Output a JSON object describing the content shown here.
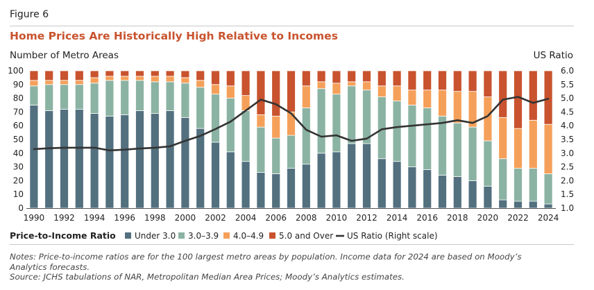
{
  "figure_label": "Figure 6",
  "title": "Home Prices Are Historically High Relative to Incomes",
  "notes": [
    "Notes: Price-to-income ratios are for the 100 largest metro areas by population. Income data for 2024 are based on Moody’s",
    "Analytics forecasts.",
    "Source: JCHS tabulations of NAR, Metropolitan Median Area Prices; Moody’s Analytics estimates."
  ],
  "colors": {
    "under_3": "#53707f",
    "range_3_39": "#8bb3a3",
    "range_4_49": "#f5a05a",
    "over_5": "#c8532e",
    "us_ratio": "#333333",
    "accent_title": "#c8532e"
  },
  "chart_data": {
    "type": "bar",
    "stacked": true,
    "title": "Home Prices Are Historically High Relative to Incomes",
    "ylabel": "Number of Metro Areas",
    "y2label": "US Ratio",
    "ylim": [
      0,
      100
    ],
    "y2lim": [
      1.0,
      6.0
    ],
    "yticks": [
      "0",
      "10",
      "20",
      "30",
      "40",
      "50",
      "60",
      "70",
      "80",
      "90",
      "100"
    ],
    "y2ticks": [
      "1.0",
      "1.5",
      "2.0",
      "2.5",
      "3.0",
      "3.5",
      "4.0",
      "4.5",
      "5.0",
      "5.5",
      "6.0"
    ],
    "categories": [
      "1990",
      "1991",
      "1992",
      "1993",
      "1994",
      "1995",
      "1996",
      "1997",
      "1998",
      "1999",
      "2000",
      "2001",
      "2002",
      "2003",
      "2004",
      "2005",
      "2006",
      "2007",
      "2008",
      "2009",
      "2010",
      "2011",
      "2012",
      "2013",
      "2014",
      "2015",
      "2016",
      "2017",
      "2018",
      "2019",
      "2020",
      "2021",
      "2022",
      "2023",
      "2024"
    ],
    "xtick_labels": [
      "1990",
      "1992",
      "1994",
      "1996",
      "1998",
      "2000",
      "2002",
      "2004",
      "2006",
      "2008",
      "2010",
      "2012",
      "2014",
      "2016",
      "2018",
      "2020",
      "2022",
      "2024"
    ],
    "legend_title": "Price-to-Income Ratio",
    "series": [
      {
        "name": "Under 3.0",
        "values": [
          75,
          71,
          72,
          72,
          69,
          67,
          68,
          71,
          69,
          71,
          66,
          58,
          48,
          41,
          34,
          26,
          25,
          29,
          32,
          40,
          41,
          47,
          47,
          36,
          34,
          30,
          28,
          24,
          23,
          20,
          16,
          6,
          5,
          5,
          3
        ]
      },
      {
        "name": "3.0–3.9",
        "values": [
          14,
          19,
          18,
          18,
          22,
          26,
          25,
          22,
          23,
          21,
          25,
          30,
          35,
          39,
          37,
          33,
          26,
          24,
          41,
          47,
          42,
          42,
          39,
          45,
          44,
          45,
          45,
          43,
          39,
          39,
          33,
          30,
          24,
          24,
          22
        ]
      },
      {
        "name": "4.0–4.9",
        "values": [
          4,
          3,
          3,
          3,
          4,
          3,
          3,
          3,
          4,
          4,
          4,
          5,
          7,
          9,
          11,
          9,
          16,
          17,
          16,
          5,
          8,
          3,
          6,
          8,
          11,
          11,
          13,
          19,
          23,
          26,
          32,
          30,
          29,
          35,
          36
        ]
      },
      {
        "name": "5.0 and Over",
        "values": [
          7,
          7,
          7,
          7,
          5,
          4,
          4,
          4,
          4,
          4,
          5,
          7,
          10,
          11,
          18,
          32,
          33,
          30,
          11,
          8,
          9,
          8,
          8,
          11,
          11,
          14,
          14,
          14,
          15,
          15,
          19,
          34,
          42,
          36,
          39
        ]
      }
    ],
    "line_series": {
      "name": "US Ratio (Right scale)",
      "axis": "right",
      "values": [
        3.15,
        3.18,
        3.2,
        3.2,
        3.2,
        3.1,
        3.13,
        3.17,
        3.2,
        3.25,
        3.45,
        3.63,
        3.88,
        4.15,
        4.55,
        4.95,
        4.78,
        4.45,
        3.85,
        3.6,
        3.65,
        3.45,
        3.53,
        3.87,
        3.95,
        4.0,
        4.05,
        4.1,
        4.2,
        4.1,
        4.35,
        4.95,
        5.05,
        4.83,
        4.98
      ]
    },
    "legend_placement": "bottom"
  }
}
